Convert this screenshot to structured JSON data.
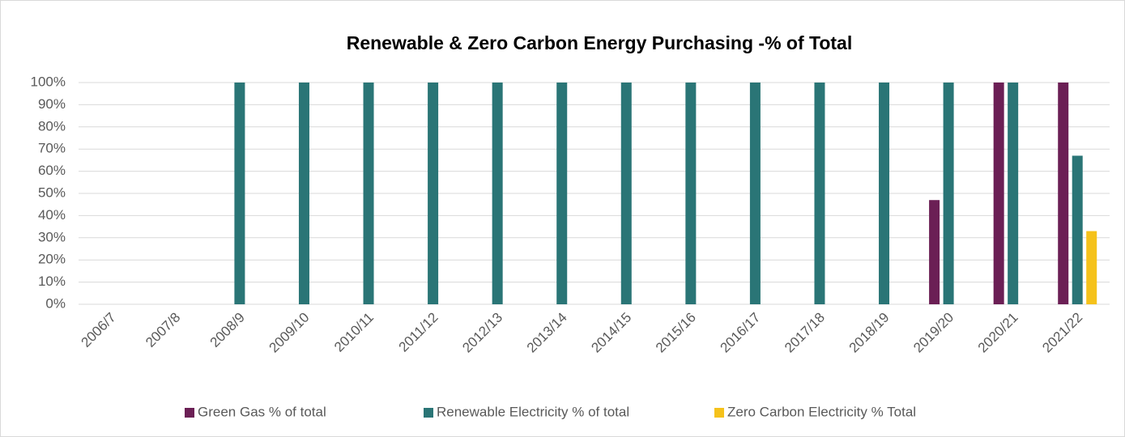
{
  "chart_data": {
    "type": "bar",
    "title": "Renewable & Zero Carbon Energy Purchasing -% of Total",
    "categories": [
      "2006/7",
      "2007/8",
      "2008/9",
      "2009/10",
      "2010/11",
      "2011/12",
      "2012/13",
      "2013/14",
      "2014/15",
      "2015/16",
      "2016/17",
      "2017/18",
      "2018/19",
      "2019/20",
      "2020/21",
      "2021/22"
    ],
    "series": [
      {
        "name": "Green Gas % of total",
        "color": "#6b1f55",
        "values": [
          0,
          0,
          0,
          0,
          0,
          0,
          0,
          0,
          0,
          0,
          0,
          0,
          0,
          47,
          100,
          100
        ]
      },
      {
        "name": "Renewable Electricity % of total",
        "color": "#2a7576",
        "values": [
          0,
          0,
          100,
          100,
          100,
          100,
          100,
          100,
          100,
          100,
          100,
          100,
          100,
          100,
          100,
          67
        ]
      },
      {
        "name": "Zero Carbon Electricity % Total",
        "color": "#f5c21b",
        "values": [
          0,
          0,
          0,
          0,
          0,
          0,
          0,
          0,
          0,
          0,
          0,
          0,
          0,
          0,
          0,
          33
        ]
      }
    ],
    "ylim": [
      0,
      100
    ],
    "yticks": [
      {
        "value": 0,
        "label": "0%"
      },
      {
        "value": 10,
        "label": "10%"
      },
      {
        "value": 20,
        "label": "20%"
      },
      {
        "value": 30,
        "label": "30%"
      },
      {
        "value": 40,
        "label": "40%"
      },
      {
        "value": 50,
        "label": "50%"
      },
      {
        "value": 60,
        "label": "60%"
      },
      {
        "value": 70,
        "label": "70%"
      },
      {
        "value": 80,
        "label": "80%"
      },
      {
        "value": 90,
        "label": "90%"
      },
      {
        "value": 100,
        "label": "100%"
      }
    ],
    "grid": true,
    "legend": "bottom"
  }
}
